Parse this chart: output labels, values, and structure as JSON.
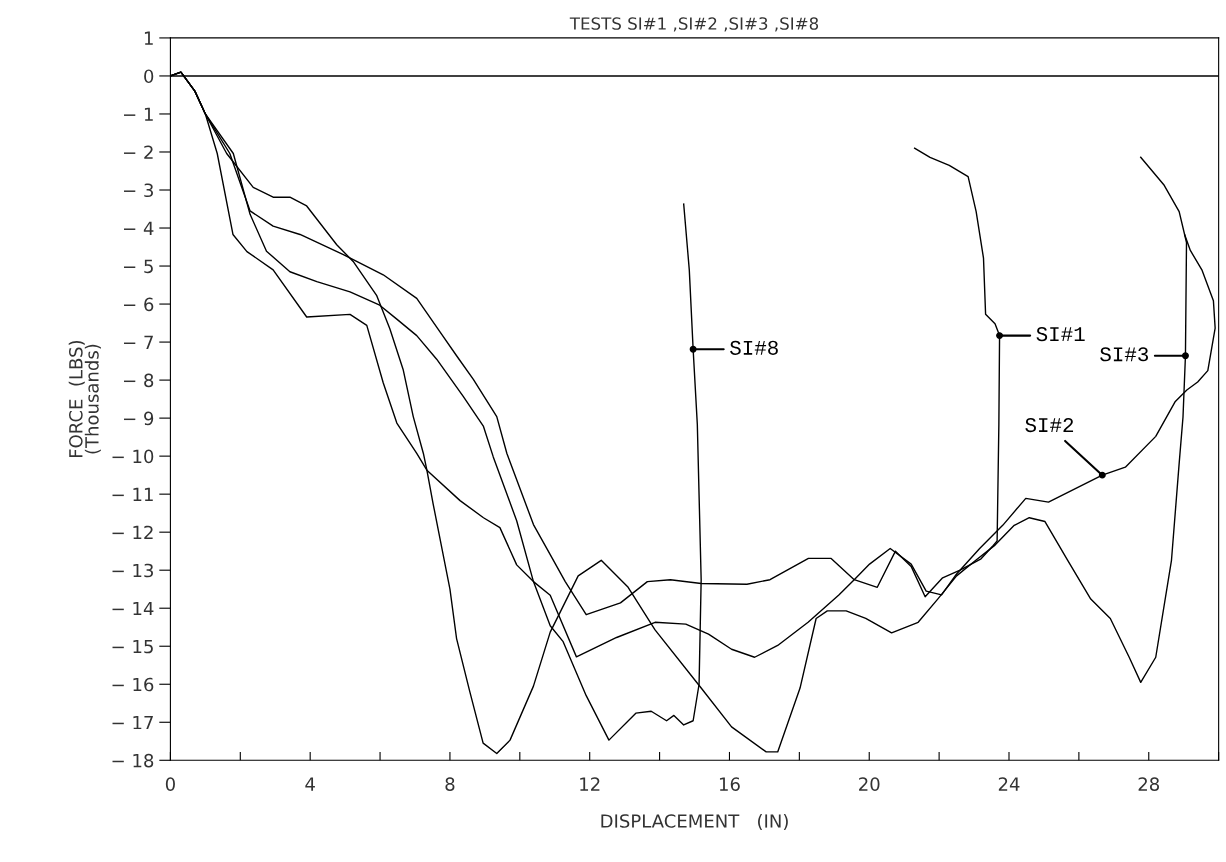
{
  "chart_data": {
    "type": "line",
    "title": "TESTS SI#1 ,SI#2 ,SI#3 ,SI#8",
    "xlabel": "DISPLACEMENT   (IN)",
    "ylabel": "FORCE  (LBS)\n(Thousands)",
    "xlim": [
      0,
      30
    ],
    "ylim": [
      -18,
      1
    ],
    "xticks": [
      0,
      {
        "value": 2,
        "label": null
      },
      4,
      {
        "value": 6,
        "label": null
      },
      8,
      {
        "value": 10,
        "label": null
      },
      12,
      {
        "value": 14,
        "label": null
      },
      16,
      {
        "value": 18,
        "label": null
      },
      20,
      {
        "value": 22,
        "label": null
      },
      24,
      {
        "value": 26,
        "label": null
      },
      28,
      {
        "value": 30,
        "label": null
      }
    ],
    "yticks": [
      1,
      0,
      -1,
      -2,
      -3,
      -4,
      -5,
      -6,
      -7,
      -8,
      -9,
      -10,
      -11,
      -12,
      -13,
      -14,
      -15,
      -16,
      -17,
      -18
    ],
    "grid": false,
    "line_style": "solid",
    "marker": "none",
    "ref_lines": [
      {
        "axis": "y",
        "value": 0,
        "color": "#000000"
      }
    ],
    "series": [
      {
        "color": "#000000",
        "x": [
          0,
          0.3,
          0.7,
          1.0,
          1.7,
          2.28,
          2.94,
          3.71,
          4.95,
          6.09,
          7.05,
          7.72,
          8.19,
          8.67,
          9.34,
          9.63,
          10.39,
          10.87,
          11.3,
          11.9,
          12.88,
          13.65,
          14.31,
          15.19,
          16.5,
          17.16,
          18.26,
          18.91,
          19.57,
          20.23,
          20.75,
          21.2,
          21.6,
          22.1,
          22.6,
          23.2,
          23.55,
          23.66,
          23.71,
          23.73,
          23.6,
          23.33,
          23.27,
          23.06,
          22.83,
          22.29,
          21.74,
          21.3
        ],
        "values": [
          0,
          0.1,
          -0.4,
          -1.0,
          -2.04,
          -3.55,
          -3.95,
          -4.17,
          -4.7,
          -5.23,
          -5.85,
          -6.74,
          -7.36,
          -7.98,
          -8.96,
          -9.93,
          -11.8,
          -12.59,
          -13.3,
          -14.17,
          -13.86,
          -13.3,
          -13.25,
          -13.35,
          -13.37,
          -13.25,
          -12.69,
          -12.69,
          -13.25,
          -13.45,
          -12.5,
          -12.9,
          -13.7,
          -13.2,
          -13.0,
          -12.7,
          -12.35,
          -12.23,
          -9.17,
          -6.83,
          -6.52,
          -6.27,
          -4.79,
          -3.57,
          -2.65,
          -2.35,
          -2.14,
          -1.9
        ]
      },
      {
        "color": "#000000",
        "x": [
          0,
          0.3,
          0.7,
          1.0,
          1.61,
          2.37,
          2.94,
          3.42,
          3.9,
          4.76,
          5.23,
          5.9,
          6.28,
          6.66,
          6.95,
          7.24,
          7.34,
          8.29,
          8.96,
          9.43,
          9.91,
          10.39,
          10.87,
          11.62,
          12.77,
          13.87,
          14.75,
          15.4,
          16.06,
          16.72,
          17.38,
          18.25,
          19.13,
          19.57,
          20.01,
          20.6,
          21.2,
          21.63,
          22.07,
          22.5,
          23.16,
          23.82,
          24.48,
          25.13,
          25.8,
          26.67,
          27.33,
          28.2,
          28.76,
          29.09,
          29.4,
          29.69,
          29.9,
          29.85,
          29.52,
          29.19,
          29.03
        ],
        "values": [
          0,
          0.1,
          -0.4,
          -1.0,
          -2.04,
          -2.93,
          -3.19,
          -3.19,
          -3.42,
          -4.44,
          -4.88,
          -5.77,
          -6.65,
          -7.72,
          -8.96,
          -9.93,
          -10.37,
          -11.17,
          -11.62,
          -11.88,
          -12.86,
          -13.3,
          -13.66,
          -15.28,
          -14.77,
          -14.37,
          -14.42,
          -14.68,
          -15.08,
          -15.29,
          -14.98,
          -14.37,
          -13.65,
          -13.25,
          -12.84,
          -12.43,
          -12.84,
          -13.55,
          -13.65,
          -13.1,
          -12.43,
          -11.82,
          -11.11,
          -11.21,
          -10.9,
          -10.5,
          -10.29,
          -9.48,
          -8.56,
          -8.26,
          -8.05,
          -7.75,
          -6.63,
          -5.91,
          -5.1,
          -4.59,
          -4.18
        ]
      },
      {
        "color": "#000000",
        "x": [
          0,
          0.3,
          0.7,
          1.0,
          1.34,
          1.79,
          2.19,
          2.94,
          3.9,
          5.14,
          5.62,
          6.09,
          6.48,
          7.05,
          7.34,
          7.52,
          8.0,
          8.19,
          8.57,
          8.95,
          9.34,
          9.72,
          10.39,
          10.87,
          11.12,
          11.67,
          12.33,
          13.1,
          13.87,
          15.19,
          16.06,
          17.05,
          17.38,
          18.02,
          18.48,
          18.8,
          19.34,
          19.9,
          20.64,
          21.4,
          21.96,
          22.5,
          23.05,
          23.6,
          24.15,
          24.58,
          25.03,
          25.68,
          26.34,
          26.9,
          27.44,
          27.77,
          28.2,
          28.65,
          28.87,
          28.98,
          29.05,
          29.08,
          28.87,
          28.43,
          27.77
        ],
        "values": [
          0,
          0.1,
          -0.4,
          -1.0,
          -2.04,
          -4.17,
          -4.62,
          -5.1,
          -6.34,
          -6.27,
          -6.56,
          -8.07,
          -9.13,
          -9.93,
          -10.37,
          -11.26,
          -13.5,
          -14.8,
          -16.2,
          -17.55,
          -17.82,
          -17.47,
          -16.05,
          -14.63,
          -14.17,
          -13.15,
          -12.74,
          -13.45,
          -14.57,
          -16.1,
          -17.12,
          -17.78,
          -17.78,
          -16.1,
          -14.27,
          -14.07,
          -14.07,
          -14.27,
          -14.65,
          -14.37,
          -13.76,
          -13.15,
          -12.74,
          -12.34,
          -11.82,
          -11.62,
          -11.72,
          -12.74,
          -13.76,
          -14.27,
          -15.29,
          -15.95,
          -15.29,
          -12.74,
          -10.19,
          -8.97,
          -7.36,
          -4.38,
          -3.57,
          -2.86,
          -2.14
        ]
      },
      {
        "color": "#000000",
        "x": [
          0,
          0.3,
          0.7,
          1.0,
          1.8,
          2.28,
          2.75,
          3.42,
          4.19,
          5.14,
          5.99,
          6.47,
          7.05,
          7.62,
          8.38,
          8.96,
          9.24,
          9.91,
          10.39,
          10.87,
          11.24,
          11.9,
          12.55,
          13.32,
          13.76,
          14.2,
          14.41,
          14.69,
          14.96,
          15.13,
          15.19,
          15.08,
          14.96,
          14.85,
          14.69
        ],
        "values": [
          0,
          0.1,
          -0.4,
          -1.0,
          -2.04,
          -3.64,
          -4.61,
          -5.15,
          -5.41,
          -5.68,
          -6.03,
          -6.39,
          -6.83,
          -7.45,
          -8.43,
          -9.22,
          -10.02,
          -11.7,
          -13.3,
          -14.46,
          -14.88,
          -16.3,
          -17.47,
          -16.76,
          -16.71,
          -16.96,
          -16.82,
          -17.07,
          -16.96,
          -16.0,
          -13.25,
          -9.17,
          -7.19,
          -5.1,
          -3.37
        ]
      }
    ],
    "annotations": [
      {
        "text": "SI#8",
        "x": 14.96,
        "y": -7.19
      },
      {
        "text": "SI#1",
        "x": 23.73,
        "y": -6.83
      },
      {
        "text": "SI#3",
        "x": 29.05,
        "y": -7.36
      },
      {
        "text": "SI#2",
        "x": 26.67,
        "y": -10.5
      }
    ]
  }
}
